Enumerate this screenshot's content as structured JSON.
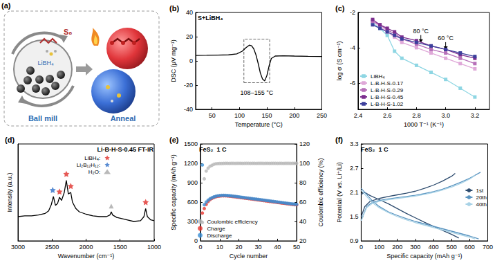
{
  "diagram": {
    "panel_label": "(a)",
    "labels": {
      "s8": "S₈",
      "libh4": "LiBH₄",
      "ball_mill": "Ball mill",
      "anneal": "Anneal"
    }
  },
  "chart_data": [
    {
      "panel_label": "(b)",
      "type": "line",
      "title": "S+LiBH₄",
      "x_label": "Temperature (°C)",
      "y_label": "DSC (μV mg⁻¹)",
      "xlim": [
        20,
        250
      ],
      "xticks": [
        50,
        100,
        150,
        200,
        250
      ],
      "ylim": [
        -40,
        40
      ],
      "yticks": [
        -40,
        -20,
        0,
        20,
        40
      ],
      "grid": false,
      "x": [
        20,
        40,
        60,
        80,
        95,
        105,
        112,
        118,
        122,
        126,
        130,
        134,
        138,
        142,
        146,
        150,
        154,
        158,
        165,
        180,
        200,
        225,
        250
      ],
      "series": [
        {
          "color": "#000000",
          "values": [
            4.5,
            4.6,
            4.8,
            5.0,
            5.8,
            8.0,
            11,
            13,
            12.5,
            10,
            5,
            -2,
            -10,
            -15,
            -16.5,
            -12,
            -4,
            2,
            4,
            4.2,
            4.0,
            3.8,
            3.7
          ]
        }
      ],
      "box": {
        "x": [
          108,
          155
        ],
        "y": [
          -18,
          18
        ]
      },
      "annotations": [
        {
          "text": "108–155 °C",
          "x": 131.5,
          "y": -26
        }
      ]
    },
    {
      "panel_label": "(c)",
      "type": "line",
      "x_label": "1000 T⁻¹ (K⁻¹)",
      "y_label": "log σ (S cm⁻¹)",
      "xlim": [
        2.4,
        3.3
      ],
      "xticks": [
        2.4,
        2.6,
        2.8,
        {
          "value": 3,
          "label": "3.0"
        },
        3.2
      ],
      "ylim": [
        -7.5,
        -2
      ],
      "yticks": [
        -6,
        -4,
        -2
      ],
      "grid": false,
      "legend": "lower left",
      "marker": "square",
      "x": [
        2.5,
        2.55,
        2.6,
        2.65,
        2.7,
        2.8,
        2.9,
        3.0,
        3.1,
        3.2
      ],
      "series": [
        {
          "name": "LiBH₄",
          "color": "#8ed6e3",
          "values": [
            -2.6,
            -2.9,
            -3.3,
            -4.2,
            -4.6,
            -5.0,
            -5.4,
            -5.8,
            -6.3,
            -6.8
          ]
        },
        {
          "name": "L-B-H-S-0.17",
          "color": "#dfa8d8",
          "values": [
            -2.5,
            -2.8,
            -3.1,
            -3.4,
            -3.7,
            -4.0,
            -4.3,
            -4.6,
            -4.9,
            -5.2
          ]
        },
        {
          "name": "L-B-H-S-0.29",
          "color": "#b66fb8",
          "values": [
            -2.5,
            -2.7,
            -3.0,
            -3.2,
            -3.5,
            -3.8,
            -4.1,
            -4.3,
            -4.6,
            -4.9
          ]
        },
        {
          "name": "L-B-H-S-0.45",
          "color": "#7b2d8e",
          "values": [
            -2.4,
            -2.7,
            -2.9,
            -3.1,
            -3.4,
            -3.6,
            -3.9,
            -4.1,
            -4.4,
            -4.6
          ]
        },
        {
          "name": "L-B-H-S-1.02",
          "color": "#3c3f9c",
          "values": [
            -2.7,
            -2.9,
            -3.1,
            -3.3,
            -3.5,
            -3.7,
            -3.9,
            -4.1,
            -4.3,
            -4.5
          ]
        }
      ],
      "annotations": [
        {
          "text": "80 °C",
          "x": 2.83,
          "y": -3.05
        },
        {
          "text": "60 °C",
          "x": 3.0,
          "y": -3.45
        }
      ]
    },
    {
      "panel_label": "(d)",
      "type": "line",
      "title": "Li-B-H-S-0.45 FT-IR",
      "x_label": "Wavenumber (cm⁻¹)",
      "y_label": "Intensity (a.u.)",
      "xlim": [
        3000,
        1000
      ],
      "xticks": [
        3000,
        2500,
        2000,
        1500,
        1000
      ],
      "ylim": [
        0,
        120
      ],
      "grid": false,
      "tick_labels": "x",
      "legend": "upper center",
      "series": [
        {
          "type": "line",
          "color": "#000000",
          "x": [
            3000,
            2900,
            2800,
            2700,
            2600,
            2550,
            2510,
            2480,
            2450,
            2420,
            2390,
            2360,
            2320,
            2290,
            2260,
            2225,
            2200,
            2150,
            2100,
            2000,
            1900,
            1800,
            1700,
            1650,
            1630,
            1610,
            1550,
            1400,
            1300,
            1200,
            1150,
            1125,
            1100,
            1050,
            1000
          ],
          "values": [
            30,
            31,
            31,
            32,
            34,
            37,
            45,
            55,
            44,
            46,
            54,
            50,
            60,
            75,
            58,
            60,
            48,
            40,
            36,
            33,
            31,
            30,
            30,
            32,
            36,
            32,
            29,
            26,
            24,
            25,
            30,
            40,
            30,
            26,
            25
          ]
        },
        {
          "type": "scatter",
          "name": "LiBH₄:",
          "color": "#e0302a",
          "marker": "star",
          "x": [
            2390,
            2290,
            2225,
            1125
          ],
          "values": [
            61,
            83,
            68,
            48
          ]
        },
        {
          "type": "scatter",
          "name": "Li₂B₁₂H₁₂:",
          "color": "#2f6fc8",
          "marker": "star",
          "x": [
            2490
          ],
          "values": [
            63
          ]
        },
        {
          "type": "scatter",
          "name": "H₂O:",
          "color": "#a8a8a8",
          "marker": "triangle",
          "x": [
            1630
          ],
          "values": [
            43
          ]
        }
      ]
    },
    {
      "panel_label": "(e)",
      "type": "scatter",
      "title": "FeS₂  1 C",
      "x_label": "Cycle number",
      "y_label": "Specific capacity (mAh g⁻¹)",
      "y2_label": "Coulombic efficiency (%)",
      "xlim": [
        0,
        50
      ],
      "xticks": [
        0,
        10,
        20,
        30,
        40,
        50
      ],
      "ylim": [
        0,
        1500
      ],
      "yticks": [
        0,
        300,
        600,
        900,
        1200,
        1500
      ],
      "y2lim": [
        20,
        120
      ],
      "y2ticks": [
        20,
        40,
        60,
        80,
        100,
        120
      ],
      "grid": false,
      "legend": "lower left",
      "marker": "circle",
      "x": [
        1,
        2,
        3,
        4,
        5,
        6,
        7,
        8,
        9,
        10,
        11,
        12,
        13,
        14,
        15,
        16,
        17,
        18,
        19,
        20,
        21,
        22,
        23,
        24,
        25,
        26,
        27,
        28,
        29,
        30,
        31,
        32,
        33,
        34,
        35,
        36,
        37,
        38,
        39,
        40,
        41,
        42,
        43,
        44,
        45,
        46,
        47,
        48,
        49,
        50
      ],
      "series": [
        {
          "name": "Coulombic efficiency",
          "color": "#b8b8b8",
          "axis": "y2",
          "values": [
            39,
            84,
            92,
            95,
            97,
            98,
            99,
            99.5,
            99.7,
            99.8,
            99.8,
            99.9,
            100,
            100,
            99.9,
            100,
            100,
            99.9,
            100,
            100,
            100,
            99.9,
            100,
            100,
            100,
            99.9,
            100,
            100,
            99.9,
            100,
            100,
            100,
            99.9,
            100,
            100,
            99.9,
            100,
            100,
            100,
            99.9,
            100,
            100,
            99.9,
            100,
            100,
            100,
            99.9,
            100,
            100,
            100
          ]
        },
        {
          "name": "Charge",
          "color": "#e8352e",
          "values": [
            430,
            500,
            565,
            610,
            638,
            658,
            672,
            682,
            689,
            694,
            697,
            698,
            697,
            695,
            692,
            689,
            686,
            682,
            678,
            674,
            670,
            666,
            662,
            658,
            654,
            650,
            646,
            642,
            639,
            635,
            631,
            627,
            623,
            619,
            615,
            611,
            607,
            603,
            599,
            595,
            591,
            587,
            583,
            579,
            575,
            571,
            567,
            564,
            561,
            558
          ]
        },
        {
          "name": "Discharge",
          "color": "#3b8fd4",
          "values": [
            1175,
            560,
            600,
            630,
            652,
            668,
            680,
            690,
            697,
            701,
            704,
            705,
            704,
            702,
            699,
            696,
            692,
            689,
            685,
            681,
            677,
            673,
            669,
            665,
            661,
            657,
            653,
            649,
            646,
            642,
            638,
            634,
            630,
            626,
            622,
            618,
            614,
            610,
            606,
            602,
            598,
            594,
            590,
            586,
            582,
            578,
            574,
            571,
            568,
            565
          ]
        }
      ]
    },
    {
      "panel_label": "(f)",
      "type": "line",
      "title": "FeS₂  1 C",
      "x_label": "Specific capacity (mAh g⁻¹)",
      "y_label": "Potential (V vs. Li⁺/Li)",
      "xlim": [
        0,
        700
      ],
      "xticks": [
        0,
        100,
        200,
        300,
        400,
        500,
        600,
        700
      ],
      "ylim": [
        0.9,
        3.3
      ],
      "yticks": [
        0.9,
        1.5,
        2.1,
        2.7,
        3.3
      ],
      "grid": false,
      "legend": "right",
      "series": [
        {
          "name": "1st",
          "color": "#2d4b6e",
          "x": [
            0,
            20,
            50,
            100,
            150,
            200,
            250,
            300,
            350,
            400,
            450,
            500,
            540,
            null,
            0,
            20,
            50,
            100,
            150,
            200,
            250,
            300,
            350,
            400,
            450,
            500,
            520
          ],
          "values": [
            2.05,
            2.1,
            2.02,
            1.92,
            1.82,
            1.7,
            1.58,
            1.47,
            1.36,
            1.26,
            1.16,
            1.06,
            0.97,
            null,
            1.5,
            1.75,
            1.88,
            1.95,
            2.0,
            2.04,
            2.08,
            2.13,
            2.2,
            2.28,
            2.38,
            2.5,
            2.57
          ]
        },
        {
          "name": "20th",
          "color": "#5a94c0",
          "x": [
            0,
            30,
            60,
            100,
            150,
            200,
            250,
            300,
            350,
            400,
            450,
            500,
            550,
            600,
            650,
            null,
            0,
            30,
            60,
            100,
            150,
            200,
            250,
            300,
            350,
            400,
            450,
            500,
            550,
            600,
            660
          ],
          "values": [
            2.2,
            2.05,
            1.9,
            1.75,
            1.62,
            1.53,
            1.45,
            1.38,
            1.32,
            1.26,
            1.2,
            1.14,
            1.08,
            1.02,
            0.95,
            null,
            1.4,
            1.75,
            1.85,
            1.9,
            1.94,
            1.97,
            2.0,
            2.03,
            2.07,
            2.12,
            2.18,
            2.26,
            2.35,
            2.45,
            2.6
          ]
        },
        {
          "name": "40th",
          "color": "#a8d2e6",
          "x": [
            0,
            30,
            60,
            100,
            150,
            200,
            250,
            300,
            350,
            400,
            450,
            500,
            550,
            600,
            630,
            null,
            0,
            30,
            60,
            100,
            150,
            200,
            250,
            300,
            350,
            400,
            450,
            500,
            550,
            600,
            630
          ],
          "values": [
            2.15,
            2.0,
            1.85,
            1.72,
            1.6,
            1.5,
            1.42,
            1.35,
            1.29,
            1.23,
            1.17,
            1.11,
            1.05,
            0.99,
            0.95,
            null,
            1.4,
            1.72,
            1.82,
            1.88,
            1.92,
            1.95,
            1.98,
            2.01,
            2.05,
            2.1,
            2.16,
            2.23,
            2.32,
            2.43,
            2.52
          ]
        }
      ]
    }
  ]
}
